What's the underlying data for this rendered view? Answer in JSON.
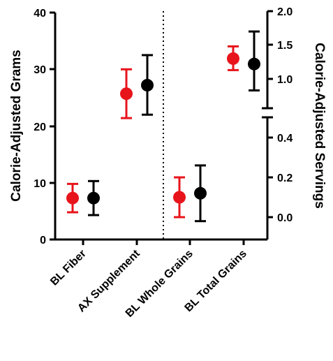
{
  "chart_data": {
    "type": "scatter",
    "subtype": "dot-with-error-bars",
    "categories": [
      "BL Fiber",
      "AX Supplement",
      "BL Whole Grains",
      "BL Total Grains"
    ],
    "left_axis": {
      "label": "Calorie-Adjusted Grams",
      "ylim": [
        0,
        40
      ],
      "ticks": [
        "0",
        "10",
        "20",
        "30",
        "40"
      ],
      "applies_to": [
        "BL Fiber",
        "AX Supplement"
      ]
    },
    "right_axis": {
      "label": "Calorie-Adjusted Servings",
      "broken": true,
      "lower_segment": {
        "ylim": [
          -0.1,
          0.5
        ],
        "ticks": [
          "0.0",
          "0.2",
          "0.4"
        ]
      },
      "upper_segment": {
        "ylim": [
          0.6,
          2.0
        ],
        "ticks": [
          "1.0",
          "1.5",
          "2.0"
        ]
      },
      "applies_to": [
        "BL Whole Grains",
        "BL Total Grains"
      ]
    },
    "series": [
      {
        "color": "#e8141b",
        "points": [
          {
            "category": "BL Fiber",
            "y": 7.3,
            "err_low": 4.8,
            "err_high": 9.8
          },
          {
            "category": "AX Supplement",
            "y": 25.7,
            "err_low": 21.4,
            "err_high": 30.0
          },
          {
            "category": "BL Whole Grains",
            "y": 0.1,
            "err_low": 0.0,
            "err_high": 0.2
          },
          {
            "category": "BL Total Grains",
            "y": 1.3,
            "err_low": 1.13,
            "err_high": 1.48
          }
        ]
      },
      {
        "color": "#000000",
        "points": [
          {
            "category": "BL Fiber",
            "y": 7.3,
            "err_low": 4.3,
            "err_high": 10.3
          },
          {
            "category": "AX Supplement",
            "y": 27.2,
            "err_low": 22.0,
            "err_high": 32.5
          },
          {
            "category": "BL Whole Grains",
            "y": 0.12,
            "err_low": -0.02,
            "err_high": 0.26
          },
          {
            "category": "BL Total Grains",
            "y": 1.22,
            "err_low": 0.83,
            "err_high": 1.7
          }
        ]
      }
    ],
    "divider": "dotted vertical line between AX Supplement and BL Whole Grains",
    "legend": "none"
  }
}
